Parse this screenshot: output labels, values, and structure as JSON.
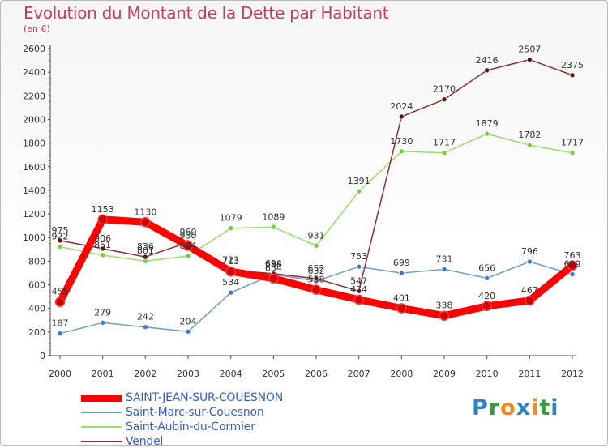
{
  "title": "Evolution du Montant de la Dette par Habitant",
  "subtitle": "(en €)",
  "logo": {
    "letters": [
      "P",
      "r",
      "o",
      "x",
      "i",
      "t",
      "i"
    ],
    "colors": [
      "#2a84c4",
      "#3a9a3a",
      "#f28b1f",
      "#2a84c4",
      "#f28b1f",
      "#3a9a3a",
      "#2a84c4"
    ]
  },
  "chart_data": {
    "type": "line",
    "x": [
      "2000",
      "2001",
      "2002",
      "2003",
      "2004",
      "2005",
      "2006",
      "2007",
      "2008",
      "2009",
      "2010",
      "2011",
      "2012"
    ],
    "ylim": [
      0,
      2600
    ],
    "yticks": [
      "0",
      "200",
      "400",
      "600",
      "800",
      "1000",
      "1200",
      "1400",
      "1600",
      "1800",
      "2000",
      "2200",
      "2400",
      "2600"
    ],
    "grid": false,
    "legend_position": "bottom-left",
    "series": [
      {
        "name": "SAINT-JEAN-SUR-COUESNON",
        "color": "#ff0000",
        "marker": "#d00000",
        "labelColor": "#cc0000",
        "values": [
          455,
          1153,
          1130,
          930,
          713,
          654,
          558,
          474,
          401,
          338,
          420,
          467,
          763
        ],
        "labels": [
          "455",
          "1153",
          "1130",
          "930",
          "713",
          "654",
          "558",
          "474",
          "401",
          "338",
          "420",
          "467",
          "763"
        ]
      },
      {
        "name": "Saint-Marc-sur-Couesnon",
        "color": "#6a9fcc",
        "marker": "#3b7bbd",
        "labelColor": "#333333",
        "values": [
          187,
          279,
          242,
          204,
          534,
          688,
          632,
          753,
          699,
          731,
          656,
          796,
          689
        ],
        "labels": [
          "187",
          "279",
          "242",
          "204",
          "534",
          "688",
          "632",
          "753",
          "699",
          "731",
          "656",
          "796",
          "689"
        ]
      },
      {
        "name": "Saint-Aubin-du-Cormier",
        "color": "#99dd66",
        "marker": "#77cc44",
        "labelColor": "#333333",
        "values": [
          922,
          851,
          801,
          844,
          1079,
          1089,
          931,
          1391,
          1730,
          1717,
          1879,
          1782,
          1717
        ],
        "labels": [
          "922",
          "851",
          "801",
          "844",
          "1079",
          "1089",
          "931",
          "1391",
          "1730",
          "1717",
          "1879",
          "1782",
          "1717"
        ]
      },
      {
        "name": "Vendel",
        "color": "#8b3030",
        "marker": "#5a1515",
        "labelColor": "#333333",
        "values": [
          975,
          906,
          836,
          960,
          723,
          694,
          652,
          547,
          2024,
          2170,
          2416,
          2507,
          2375
        ],
        "labels": [
          "975",
          "906",
          "836",
          "960",
          "723",
          "694",
          "652",
          "547",
          "2024",
          "2170",
          "2416",
          "2507",
          "2375"
        ]
      }
    ]
  }
}
